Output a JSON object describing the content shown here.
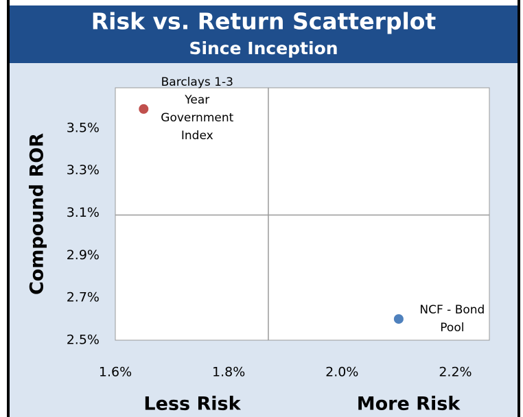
{
  "chart_data": {
    "type": "scatter",
    "title": "Risk vs. Return Scatterplot",
    "subtitle": "Since Inception",
    "y_label": "Compound ROR",
    "x_annotations": [
      "Less Risk",
      "More Risk"
    ],
    "xlim": [
      1.6,
      2.26
    ],
    "ylim": [
      2.5,
      3.69
    ],
    "xticks": [
      {
        "value": 1.6,
        "label": "1.6%"
      },
      {
        "value": 1.8,
        "label": "1.8%"
      },
      {
        "value": 2.0,
        "label": "2.0%"
      },
      {
        "value": 2.2,
        "label": "2.2%"
      }
    ],
    "yticks": [
      {
        "value": 2.5,
        "label": "2.5%"
      },
      {
        "value": 2.7,
        "label": "2.7%"
      },
      {
        "value": 2.9,
        "label": "2.9%"
      },
      {
        "value": 3.1,
        "label": "3.1%"
      },
      {
        "value": 3.3,
        "label": "3.3%"
      },
      {
        "value": 3.5,
        "label": "3.5%"
      }
    ],
    "quadrant_lines": {
      "x": 1.87,
      "y": 3.09
    },
    "series": [
      {
        "name": "Barclays 1-3 Year Government Index",
        "color": "#c0504d",
        "x": [
          1.65
        ],
        "values": [
          3.59
        ]
      },
      {
        "name": "NCF - Bond Pool",
        "color": "#4f81bd",
        "x": [
          2.1
        ],
        "values": [
          2.6
        ]
      }
    ]
  }
}
